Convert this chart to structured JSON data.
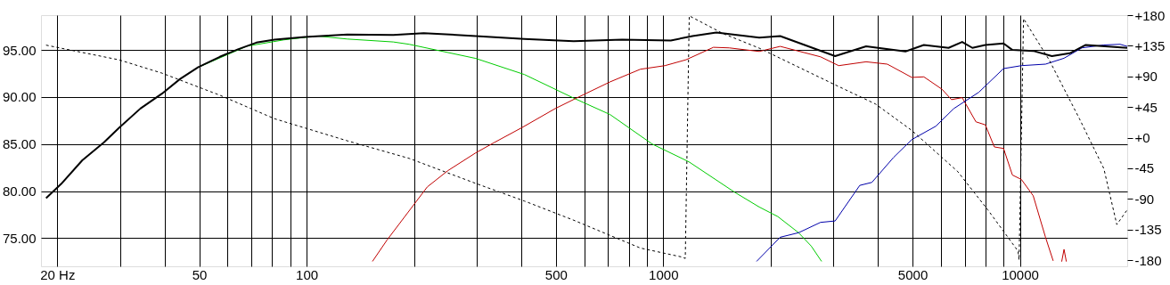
{
  "chart_data": {
    "type": "line",
    "log": "x",
    "grid": true,
    "xlim": [
      18,
      20000
    ],
    "xticks": [
      {
        "value": 20,
        "label": "20 Hz"
      },
      {
        "value": 30,
        "label": null
      },
      {
        "value": 40,
        "label": null
      },
      50,
      {
        "value": 60,
        "label": null
      },
      {
        "value": 70,
        "label": null
      },
      {
        "value": 80,
        "label": null
      },
      {
        "value": 90,
        "label": null
      },
      100,
      {
        "value": 200,
        "label": null
      },
      {
        "value": 300,
        "label": null
      },
      {
        "value": 400,
        "label": null
      },
      500,
      {
        "value": 600,
        "label": null
      },
      {
        "value": 700,
        "label": null
      },
      {
        "value": 800,
        "label": null
      },
      {
        "value": 900,
        "label": null
      },
      1000,
      {
        "value": 2000,
        "label": null
      },
      {
        "value": 3000,
        "label": null
      },
      {
        "value": 4000,
        "label": null
      },
      5000,
      {
        "value": 6000,
        "label": null
      },
      {
        "value": 7000,
        "label": null
      },
      {
        "value": 8000,
        "label": null
      },
      {
        "value": 9000,
        "label": null
      },
      10000
    ],
    "ylim": [
      72,
      98.7
    ],
    "yticks": [
      {
        "value": 75,
        "label": "75.00"
      },
      {
        "value": 80,
        "label": "80.00"
      },
      {
        "value": 85,
        "label": "85.00"
      },
      {
        "value": 90,
        "label": "90.00"
      },
      {
        "value": 95,
        "label": "95.00"
      }
    ],
    "y2lim": [
      -189,
      180
    ],
    "y2ticks": [
      {
        "value": -180,
        "label": "-180"
      },
      {
        "value": -135,
        "label": "-135"
      },
      {
        "value": -90,
        "label": "-90"
      },
      {
        "value": -45,
        "label": "-45"
      },
      {
        "value": 0,
        "label": "+0"
      },
      {
        "value": 45,
        "label": "+45"
      },
      {
        "value": 90,
        "label": "+90"
      },
      {
        "value": 135,
        "label": "+135"
      },
      {
        "value": 180,
        "label": "+180"
      }
    ],
    "series": [
      {
        "color": "#00cc00",
        "x": [
          50.7,
          68,
          86.3,
          107,
          130,
          175,
          194,
          298,
          408,
          561,
          709,
          931,
          1180,
          1585,
          1859,
          2095,
          2396,
          2600,
          2780
        ],
        "values": [
          93.3,
          95.4,
          96.07,
          96.48,
          96.16,
          95.85,
          95.6,
          94.1,
          92.39,
          89.88,
          88.14,
          85.0,
          83.11,
          79.88,
          78.3,
          77.29,
          75.57,
          74.15,
          72.52
        ]
      },
      {
        "color": "#c00000",
        "x": [
          153,
          168,
          197,
          218,
          249,
          298,
          336,
          401,
          498,
          571,
          709,
          863,
          1011,
          1159,
          1383,
          1531,
          1859,
          2128,
          2761,
          3105,
          3706,
          4249,
          4977,
          5380,
          6050,
          6430,
          6890,
          7530,
          8000,
          8480,
          9000,
          9530,
          10100,
          10900,
          11800,
          12400,
          12800,
          13100,
          13300,
          13500
        ],
        "values": [
          72.52,
          74.78,
          78.24,
          80.44,
          82.17,
          84.06,
          85.16,
          86.73,
          88.77,
          89.88,
          91.6,
          92.95,
          93.33,
          93.96,
          95.28,
          95.22,
          94.84,
          95.38,
          94.27,
          93.33,
          93.74,
          93.49,
          92.08,
          92.14,
          90.82,
          89.72,
          89.93,
          87.36,
          87.04,
          84.69,
          84.53,
          81.7,
          81.23,
          79.5,
          75.09,
          72.58,
          null,
          72.5,
          73.8,
          72.5
        ]
      },
      {
        "color": "#0000aa",
        "x": [
          1827,
          2128,
          2396,
          2761,
          3034,
          3557,
          3846,
          4426,
          4977,
          5810,
          6530,
          7670,
          9000,
          10100,
          11800,
          13300,
          14930,
          17200,
          19100,
          20000
        ],
        "values": [
          72.52,
          75.09,
          75.57,
          76.67,
          76.82,
          80.6,
          80.92,
          83.58,
          85.47,
          86.89,
          88.77,
          90.5,
          93.02,
          93.33,
          93.49,
          94.12,
          95.22,
          95.53,
          95.6,
          95.38
        ]
      },
      {
        "color": "#000000",
        "x": [
          18.6,
          20.5,
          23.5,
          27.0,
          29.8,
          34.2,
          39.3,
          44.2,
          49.7,
          57.1,
          64.2,
          72.3,
          81.3,
          99,
          130,
          175,
          213,
          298,
          408,
          561,
          767,
          1050,
          1208,
          1409,
          1859,
          2128,
          3034,
          3706,
          4777,
          5380,
          6310,
          6890,
          7360,
          8000,
          9000,
          9530,
          10900,
          12300,
          13800,
          15300,
          20000
        ],
        "values": [
          79.25,
          80.75,
          83.27,
          85.16,
          86.73,
          88.77,
          90.35,
          91.92,
          93.18,
          94.27,
          95.07,
          95.78,
          96.1,
          96.39,
          96.63,
          96.6,
          96.79,
          96.48,
          96.16,
          95.92,
          96.1,
          96.0,
          96.48,
          96.85,
          96.32,
          96.48,
          94.34,
          95.38,
          94.84,
          95.53,
          95.22,
          95.85,
          95.22,
          95.53,
          95.69,
          95.0,
          94.9,
          94.34,
          94.65,
          95.53,
          95.22
        ]
      },
      {
        "color": "#000000",
        "axis": "y2",
        "line_style": "dashed",
        "x": [
          18.6,
          29.8,
          39.3,
          57.1,
          81.3,
          130,
          194,
          298,
          408,
          561,
          863,
          1120,
          1153,
          1183,
          1468,
          1859,
          3034,
          3936,
          4977,
          6700,
          8130,
          9880,
          9950,
          10240,
          12080,
          14690,
          17200,
          18700,
          20000
        ],
        "values": [
          135.9,
          114.3,
          94.8,
          62.4,
          27.8,
          -4.6,
          -30.5,
          -67.2,
          -93.1,
          -121.3,
          -162.2,
          -175,
          -177.4,
          179,
          153.2,
          131.5,
          77.6,
          49.5,
          10.6,
          -50,
          -106,
          -166.6,
          -179.6,
          174.8,
          114.3,
          27.8,
          -45.6,
          -127.7,
          -106
        ]
      }
    ]
  }
}
